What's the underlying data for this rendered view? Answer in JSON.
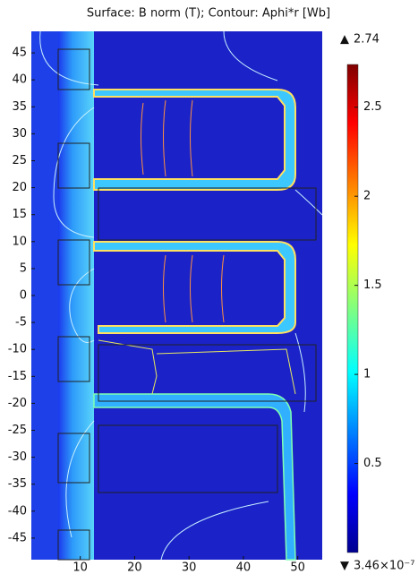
{
  "chart_data": {
    "type": "surface",
    "title": "Surface: B norm (T); Contour: Aphi*r [Wb]",
    "xlim": [
      1,
      54.5
    ],
    "xticks": [
      10,
      20,
      30,
      40,
      50
    ],
    "ylim": [
      -49,
      49
    ],
    "yticks": [
      45,
      40,
      35,
      30,
      25,
      20,
      15,
      10,
      5,
      0,
      -5,
      -10,
      -15,
      -20,
      -25,
      -30,
      -35,
      -40,
      -45
    ],
    "colorbar": {
      "colormap": "jet",
      "max": 2.74,
      "min": {
        "value": 3.46e-07,
        "label": "3.46×10⁻⁷"
      },
      "ticks": [
        2.5,
        2,
        1.5,
        1,
        0.5
      ]
    }
  }
}
